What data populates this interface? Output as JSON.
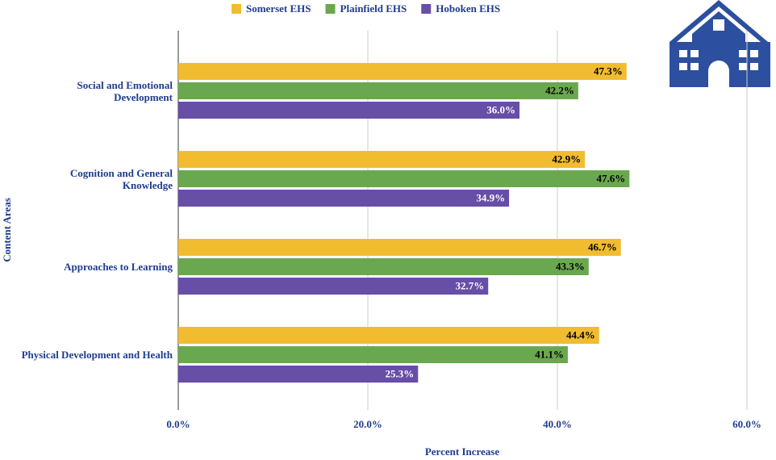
{
  "chart_data": {
    "type": "hbar",
    "x_label": "Percent Increase",
    "y_label": "Content Areas",
    "categories": [
      "Social and Emotional Development",
      "Cognition and General Knowledge",
      "Approaches to Learning",
      "Physical Development and Health"
    ],
    "series": [
      {
        "name": "Somerset EHS",
        "color": "#f1bc2f",
        "label_color": "#000000",
        "values": [
          47.3,
          42.9,
          46.7,
          44.4
        ],
        "value_labels": [
          "47.3%",
          "42.9%",
          "46.7%",
          "44.4%"
        ]
      },
      {
        "name": "Plainfield EHS",
        "color": "#6aa84f",
        "label_color": "#000000",
        "values": [
          42.2,
          47.6,
          43.3,
          41.1
        ],
        "value_labels": [
          "42.2%",
          "47.6%",
          "43.3%",
          "41.1%"
        ]
      },
      {
        "name": "Hoboken EHS",
        "color": "#674ea7",
        "label_color": "#ffffff",
        "values": [
          36.0,
          34.9,
          32.7,
          25.3
        ],
        "value_labels": [
          "36.0%",
          "34.9%",
          "32.7%",
          "25.3%"
        ]
      }
    ],
    "xlim": [
      0,
      60
    ],
    "xticks": [
      {
        "value": 0,
        "label": "0.0%"
      },
      {
        "value": 20,
        "label": "20.0%"
      },
      {
        "value": 40,
        "label": "40.0%"
      },
      {
        "value": 60,
        "label": "60.0%"
      }
    ],
    "grid": true,
    "legend": "top"
  }
}
